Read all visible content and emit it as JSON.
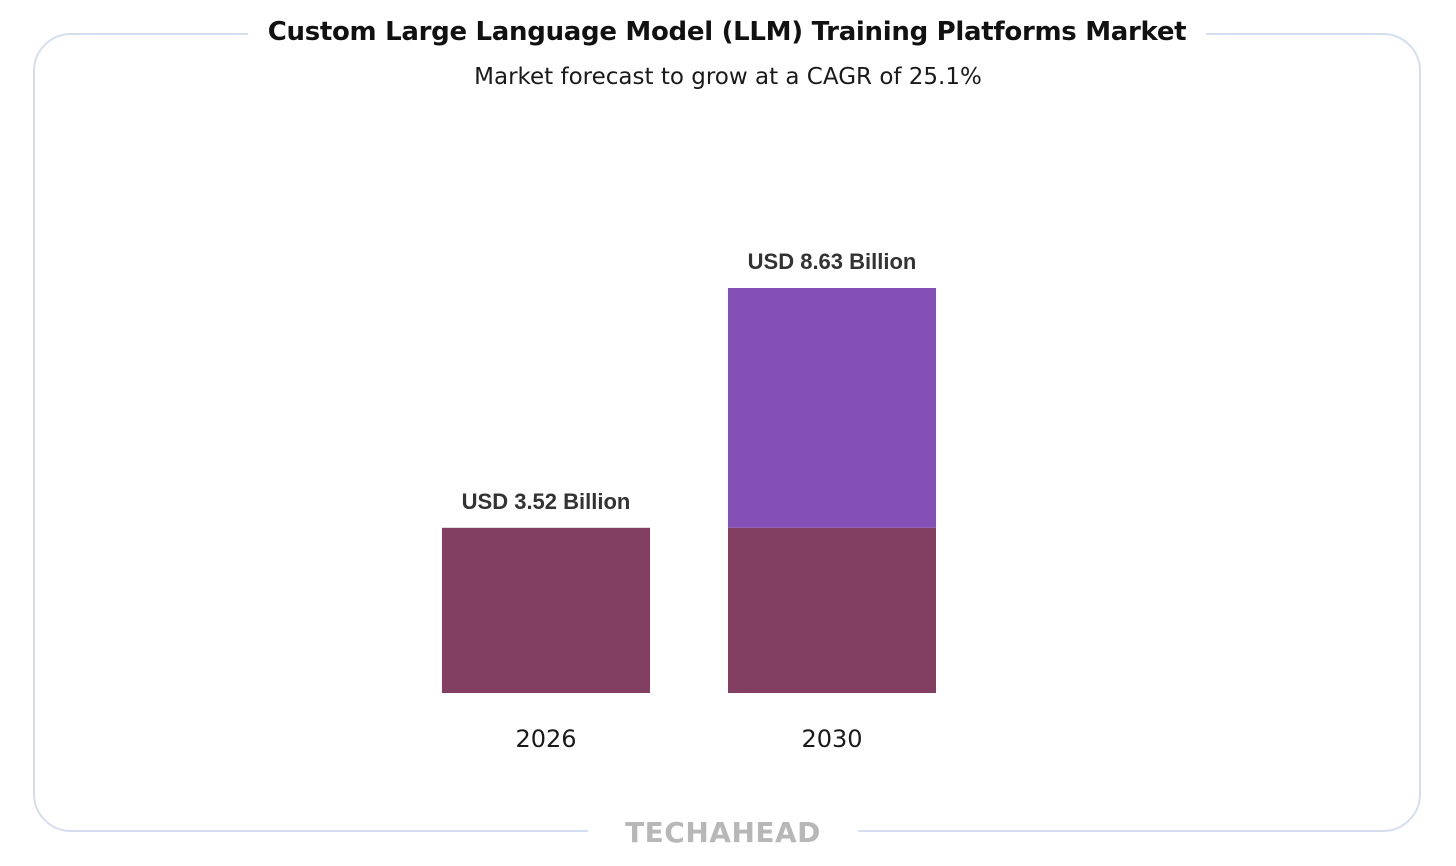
{
  "chart_data": {
    "type": "bar",
    "title": "Custom Large Language Model (LLM) Training Platforms Market",
    "subtitle": "Market forecast to grow at a CAGR of 25.1%",
    "categories": [
      "2026",
      "2030"
    ],
    "values": [
      3.52,
      8.63
    ],
    "data_labels": [
      "USD 3.52 Billion",
      "USD 8.63 Billion"
    ],
    "unit": "USD Billion",
    "xlabel": "",
    "ylabel": "",
    "grid": false,
    "legend": "none",
    "colors": {
      "base": "#823f62",
      "growth": "#8550b6"
    }
  },
  "brand": {
    "name": "TECHAHEAD"
  }
}
